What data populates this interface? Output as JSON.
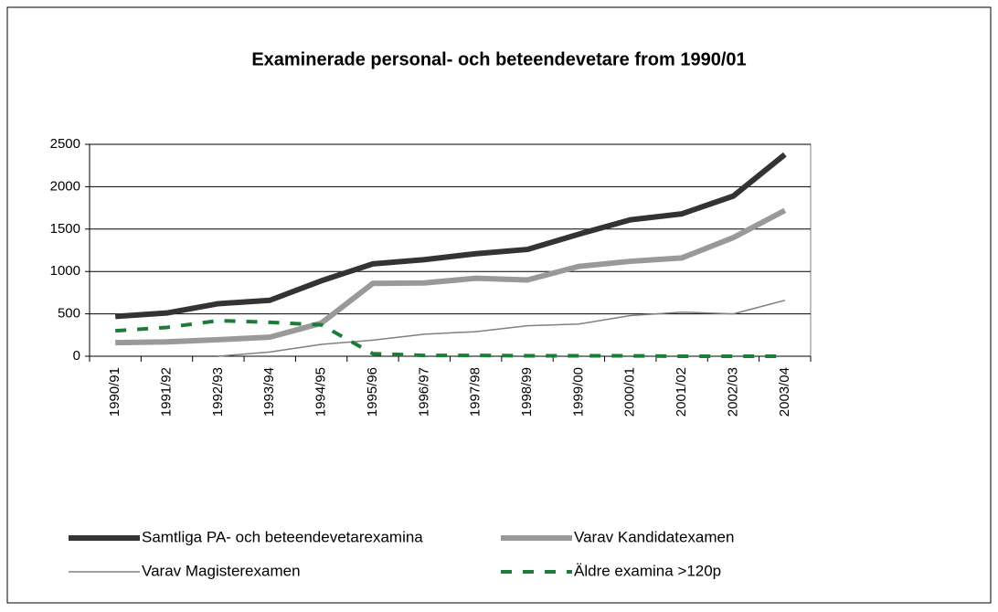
{
  "chart_data": {
    "type": "line",
    "title": "Examinerade personal- och beteendevetare from 1990/01",
    "categories": [
      "1990/91",
      "1991/92",
      "1992/93",
      "1993/94",
      "1994/95",
      "1995/96",
      "1996/97",
      "1997/98",
      "1998/99",
      "1999/00",
      "2000/01",
      "2001/02",
      "2002/03",
      "2003/04"
    ],
    "series": [
      {
        "name": "Samtliga PA- och beteendevetarexamina",
        "color": "#333333",
        "width": 6,
        "dash": "solid",
        "values": [
          470,
          510,
          620,
          660,
          890,
          1090,
          1140,
          1210,
          1260,
          1440,
          1610,
          1680,
          1890,
          2380
        ]
      },
      {
        "name": "Varav Kandidatexamen",
        "color": "#999999",
        "width": 6,
        "dash": "solid",
        "values": [
          160,
          170,
          195,
          225,
          390,
          860,
          865,
          920,
          900,
          1060,
          1120,
          1160,
          1400,
          1720
        ]
      },
      {
        "name": "Varav Magisterexamen",
        "color": "#808080",
        "width": 1.5,
        "dash": "solid",
        "values": [
          null,
          null,
          0,
          50,
          140,
          190,
          260,
          290,
          360,
          380,
          480,
          520,
          500,
          660
        ]
      },
      {
        "name": "Äldre examina >120p",
        "color": "#1e7b3a",
        "width": 4,
        "dash": "dashed",
        "values": [
          300,
          340,
          420,
          400,
          370,
          30,
          10,
          10,
          5,
          5,
          5,
          0,
          0,
          0
        ]
      }
    ],
    "ylim": [
      0,
      2500
    ],
    "yticks": [
      0,
      500,
      1000,
      1500,
      2000,
      2500
    ],
    "grid": true
  }
}
